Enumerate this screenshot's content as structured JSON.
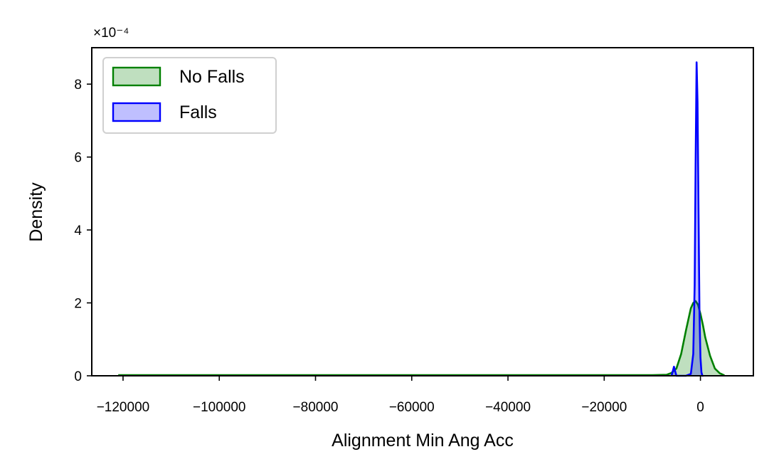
{
  "chart_data": {
    "type": "area",
    "xlabel": "Alignment Min Ang Acc",
    "ylabel": "Density",
    "y_offset_text": "×10⁻⁴",
    "y_scale_exponent": -4,
    "xlim": [
      -126500,
      11000
    ],
    "ylim": [
      0,
      9.0
    ],
    "x_ticks": [
      -120000,
      -100000,
      -80000,
      -60000,
      -40000,
      -20000,
      0
    ],
    "x_tick_labels": [
      "−120000",
      "−100000",
      "−80000",
      "−60000",
      "−40000",
      "−20000",
      "0"
    ],
    "y_ticks": [
      0,
      2,
      4,
      6,
      8
    ],
    "y_tick_labels": [
      "0",
      "2",
      "4",
      "6",
      "8"
    ],
    "grid": false,
    "legend_position": "top-left",
    "series": [
      {
        "name": "No Falls",
        "color": "#008000",
        "fill": "#008000",
        "fill_opacity": 0.25,
        "x": [
          -121000,
          -110000,
          -100000,
          -80000,
          -60000,
          -40000,
          -20000,
          -10000,
          -7000,
          -6000,
          -5000,
          -4000,
          -3000,
          -2000,
          -1500,
          -1000,
          -500,
          0,
          500,
          1000,
          2000,
          3000,
          4000,
          5000
        ],
        "y": [
          0.02,
          0.02,
          0.02,
          0.02,
          0.02,
          0.02,
          0.02,
          0.02,
          0.03,
          0.08,
          0.2,
          0.6,
          1.25,
          1.85,
          2.0,
          2.05,
          1.95,
          1.7,
          1.4,
          1.05,
          0.55,
          0.2,
          0.07,
          0.01
        ]
      },
      {
        "name": "Falls",
        "color": "#0000ff",
        "fill": "#0000ff",
        "fill_opacity": 0.25,
        "x": [
          -6000,
          -5800,
          -5500,
          -5200,
          -5000,
          -4800,
          -3000,
          -2000,
          -1500,
          -1200,
          -1000,
          -800,
          -600,
          -400,
          -200,
          0,
          200,
          400,
          600
        ],
        "y": [
          0.0,
          0.1,
          0.25,
          0.1,
          0.0,
          0.0,
          0.0,
          0.05,
          0.6,
          2.5,
          5.8,
          8.6,
          7.5,
          4.5,
          1.8,
          0.5,
          0.1,
          0.0,
          0.0
        ]
      }
    ]
  }
}
